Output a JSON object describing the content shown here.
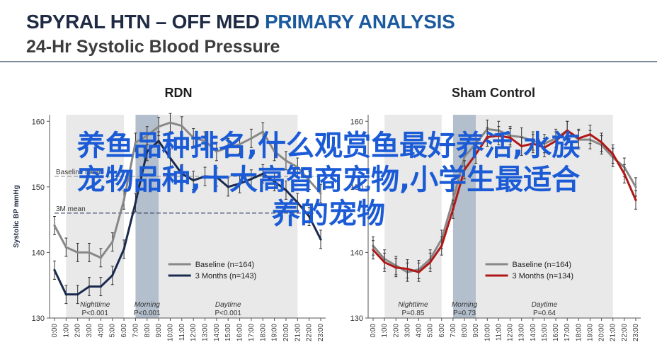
{
  "header": {
    "title_main": "SPYRAL HTN – OFF MED",
    "title_accent": "PRIMARY ANALYSIS",
    "subtitle": "24-Hr Systolic Blood Pressure"
  },
  "overlay": {
    "line1": "养鱼品种排名,什么观赏鱼最好养活,水族",
    "line2": "宠物品种,十大高智商宠物,小学生最适合",
    "line3": "养的宠物"
  },
  "colors": {
    "baseline": "#888888",
    "rdn_3m": "#1a2a4e",
    "sham_3m": "#b01818",
    "period_band": "#e9e9e9",
    "morning_band": "#b3bfcc"
  },
  "chart_data": [
    {
      "type": "line",
      "title": "RDN",
      "ylabel": "Systolic BP mmHg",
      "ylim": [
        130,
        161
      ],
      "yticks": [
        130,
        140,
        150,
        160
      ],
      "xlim": [
        0,
        23
      ],
      "x_tick_labels": [
        "0:00",
        "1:00",
        "2:00",
        "3:00",
        "4:00",
        "5:00",
        "6:00",
        "7:00",
        "8:00",
        "9:00",
        "10:00",
        "11:00",
        "12:00",
        "13:00",
        "14:00",
        "15:00",
        "16:00",
        "17:00",
        "18:00",
        "19:00",
        "20:00",
        "21:00",
        "22:00",
        "23:00"
      ],
      "periods": [
        {
          "name": "Nighttime",
          "p": "P<0.001",
          "x0": 1,
          "x1": 6
        },
        {
          "name": "Morning",
          "p": "P<0.001",
          "x0": 7,
          "x1": 9
        },
        {
          "name": "Daytime",
          "p": "P<0.001",
          "x0": 9,
          "x1": 21
        }
      ],
      "mean_lines": [
        {
          "label": "Baseline mean",
          "y": 151.6,
          "series": 0
        },
        {
          "label": "3M mean",
          "y": 146.0,
          "series": 1
        }
      ],
      "legend": {
        "placement": "bottom-right"
      },
      "x": [
        0,
        1,
        2,
        3,
        4,
        5,
        6,
        7,
        8,
        9,
        10,
        11,
        12,
        13,
        14,
        15,
        16,
        17,
        18,
        19,
        20,
        21,
        22,
        23
      ],
      "series": [
        {
          "name": "Baseline (n=164)",
          "color": "#888888",
          "values": [
            144.1,
            140.8,
            140.0,
            140.0,
            139.2,
            141.6,
            148.0,
            156.8,
            157.8,
            159.2,
            159.8,
            159.3,
            157.5,
            157.0,
            155.4,
            156.0,
            156.5,
            157.4,
            158.4,
            155.4,
            154.0,
            153.0,
            151.0,
            149.0
          ]
        },
        {
          "name": "3 Months (n=143)",
          "color": "#1a2a4e",
          "values": [
            137.3,
            133.6,
            133.6,
            134.8,
            134.8,
            136.5,
            140.5,
            147.6,
            155.4,
            157.0,
            154.4,
            152.0,
            151.0,
            151.6,
            151.5,
            150.0,
            150.5,
            151.2,
            152.0,
            150.8,
            149.5,
            147.6,
            145.5,
            142.0
          ]
        }
      ]
    },
    {
      "type": "line",
      "title": "Sham Control",
      "ylabel": "",
      "ylim": [
        130,
        161
      ],
      "yticks": [
        130,
        140,
        150,
        160
      ],
      "xlim": [
        0,
        23
      ],
      "x_tick_labels": [
        "0:00",
        "1:00",
        "2:00",
        "3:00",
        "4:00",
        "5:00",
        "6:00",
        "7:00",
        "8:00",
        "9:00",
        "10:00",
        "11:00",
        "12:00",
        "13:00",
        "14:00",
        "15:00",
        "16:00",
        "17:00",
        "18:00",
        "19:00",
        "20:00",
        "21:00",
        "22:00",
        "23:00"
      ],
      "periods": [
        {
          "name": "Nighttime",
          "p": "P=0.85",
          "x0": 1,
          "x1": 6
        },
        {
          "name": "Morning",
          "p": "P=0.73",
          "x0": 7,
          "x1": 9
        },
        {
          "name": "Daytime",
          "p": "P=0.64",
          "x0": 9,
          "x1": 21
        }
      ],
      "mean_lines": [],
      "legend": {
        "placement": "bottom-right"
      },
      "x": [
        0,
        1,
        2,
        3,
        4,
        5,
        6,
        7,
        8,
        9,
        10,
        11,
        12,
        13,
        14,
        15,
        16,
        17,
        18,
        19,
        20,
        21,
        22,
        23
      ],
      "series": [
        {
          "name": "Baseline (n=164)",
          "color": "#888888",
          "values": [
            141.0,
            139.0,
            138.0,
            137.0,
            137.4,
            139.0,
            142.0,
            148.0,
            154.6,
            156.6,
            158.8,
            158.6,
            157.8,
            157.6,
            157.0,
            156.6,
            157.4,
            158.6,
            157.2,
            157.2,
            156.4,
            154.5,
            153.0,
            150.0
          ]
        },
        {
          "name": "3 Months (n=134)",
          "color": "#b01818",
          "values": [
            140.4,
            138.5,
            137.7,
            137.5,
            137.0,
            138.5,
            141.0,
            146.6,
            152.6,
            155.0,
            157.6,
            157.8,
            157.5,
            156.2,
            156.6,
            156.0,
            157.0,
            158.6,
            157.4,
            158.0,
            156.8,
            155.0,
            152.0,
            148.0
          ]
        }
      ]
    }
  ]
}
